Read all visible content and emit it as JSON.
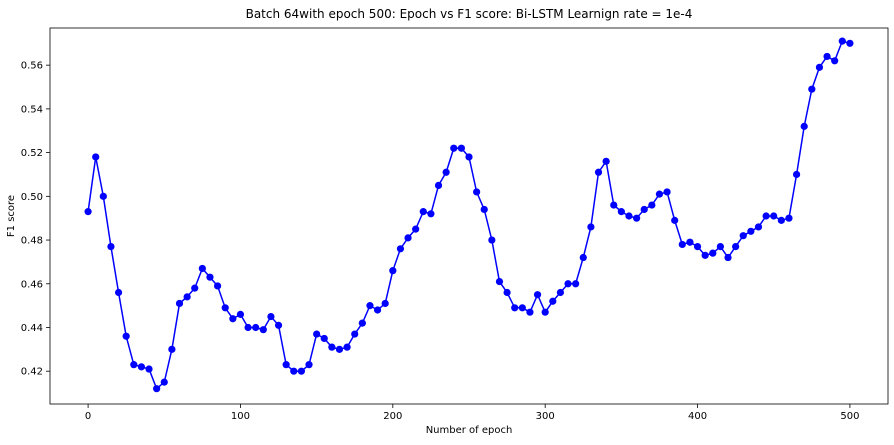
{
  "chart_data": {
    "type": "line",
    "title": "Batch 64with epoch 500: Epoch vs F1 score: Bi-LSTM Learnign rate = 1e-4",
    "xlabel": "Number of epoch",
    "ylabel": "F1 score",
    "xlim": [
      -25,
      525
    ],
    "ylim": [
      0.405,
      0.577
    ],
    "xticks": [
      0,
      100,
      200,
      300,
      400,
      500
    ],
    "yticks": [
      0.42,
      0.44,
      0.46,
      0.48,
      0.5,
      0.52,
      0.54,
      0.56
    ],
    "xtick_labels": [
      "0",
      "100",
      "200",
      "300",
      "400",
      "500"
    ],
    "ytick_labels": [
      "0.42",
      "0.44",
      "0.46",
      "0.48",
      "0.50",
      "0.52",
      "0.54",
      "0.56"
    ],
    "grid": false,
    "line_color": "#0000ff",
    "marker": "circle",
    "x": [
      0,
      5,
      10,
      15,
      20,
      25,
      30,
      35,
      40,
      45,
      50,
      55,
      60,
      65,
      70,
      75,
      80,
      85,
      90,
      95,
      100,
      105,
      110,
      115,
      120,
      125,
      130,
      135,
      140,
      145,
      150,
      155,
      160,
      165,
      170,
      175,
      180,
      185,
      190,
      195,
      200,
      205,
      210,
      215,
      220,
      225,
      230,
      235,
      240,
      245,
      250,
      255,
      260,
      265,
      270,
      275,
      280,
      285,
      290,
      295,
      300,
      305,
      310,
      315,
      320,
      325,
      330,
      335,
      340,
      345,
      350,
      355,
      360,
      365,
      370,
      375,
      380,
      385,
      390,
      395,
      400,
      405,
      410,
      415,
      420,
      425,
      430,
      435,
      440,
      445,
      450,
      455,
      460,
      465,
      470,
      475,
      480,
      485,
      490,
      495,
      500
    ],
    "y": [
      0.493,
      0.518,
      0.5,
      0.477,
      0.456,
      0.436,
      0.423,
      0.422,
      0.421,
      0.412,
      0.415,
      0.43,
      0.451,
      0.454,
      0.458,
      0.467,
      0.463,
      0.459,
      0.449,
      0.444,
      0.446,
      0.44,
      0.44,
      0.439,
      0.445,
      0.441,
      0.423,
      0.42,
      0.42,
      0.423,
      0.437,
      0.435,
      0.431,
      0.43,
      0.431,
      0.437,
      0.442,
      0.45,
      0.448,
      0.451,
      0.466,
      0.476,
      0.481,
      0.485,
      0.493,
      0.492,
      0.505,
      0.511,
      0.522,
      0.522,
      0.518,
      0.502,
      0.494,
      0.48,
      0.461,
      0.456,
      0.449,
      0.449,
      0.447,
      0.455,
      0.447,
      0.452,
      0.456,
      0.46,
      0.46,
      0.472,
      0.486,
      0.511,
      0.516,
      0.496,
      0.493,
      0.491,
      0.49,
      0.494,
      0.496,
      0.501,
      0.502,
      0.489,
      0.478,
      0.479,
      0.477,
      0.473,
      0.474,
      0.477,
      0.472,
      0.477,
      0.482,
      0.484,
      0.486,
      0.491,
      0.491,
      0.489,
      0.49,
      0.51,
      0.532,
      0.549,
      0.559,
      0.564,
      0.562,
      0.571,
      0.57
    ]
  }
}
